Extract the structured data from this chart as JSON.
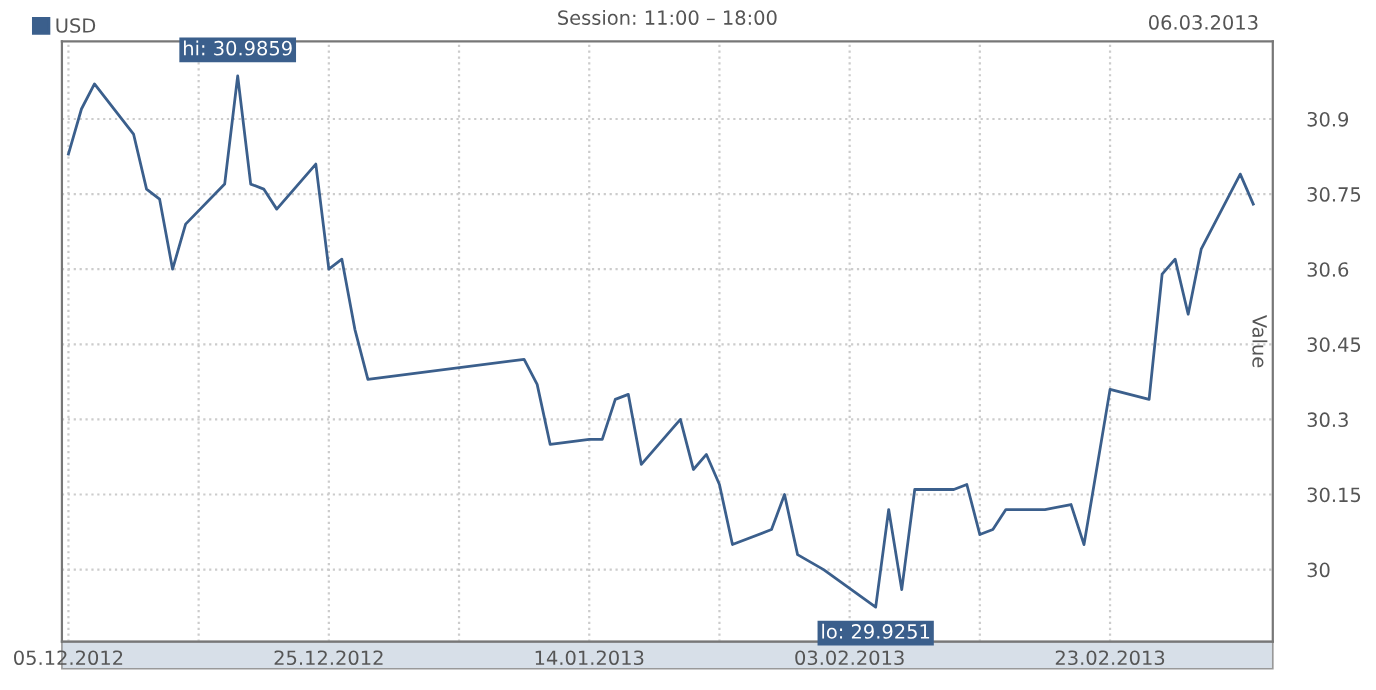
{
  "chart_data": {
    "type": "line",
    "title": "Session: 11:00 – 18:00",
    "annotations": [
      "06.03.2013",
      {
        "text": "hi: 30.9859",
        "x": "2012-12-18",
        "y": 30.9859
      },
      {
        "text": "lo: 29.9251",
        "x": "2013-02-05",
        "y": 29.9251
      }
    ],
    "ylabel": "Value",
    "series": [
      {
        "name": "USD",
        "color": "#3b5f8c",
        "x": [
          "2012-12-05",
          "2012-12-06",
          "2012-12-07",
          "2012-12-10",
          "2012-12-11",
          "2012-12-12",
          "2012-12-13",
          "2012-12-14",
          "2012-12-17",
          "2012-12-18",
          "2012-12-19",
          "2012-12-20",
          "2012-12-21",
          "2012-12-24",
          "2012-12-25",
          "2012-12-26",
          "2012-12-27",
          "2012-12-28",
          "2013-01-09",
          "2013-01-10",
          "2013-01-11",
          "2013-01-14",
          "2013-01-15",
          "2013-01-16",
          "2013-01-17",
          "2013-01-18",
          "2013-01-21",
          "2013-01-22",
          "2013-01-23",
          "2013-01-24",
          "2013-01-25",
          "2013-01-28",
          "2013-01-29",
          "2013-01-30",
          "2013-02-01",
          "2013-02-05",
          "2013-02-06",
          "2013-02-07",
          "2013-02-08",
          "2013-02-11",
          "2013-02-12",
          "2013-02-13",
          "2013-02-14",
          "2013-02-15",
          "2013-02-18",
          "2013-02-20",
          "2013-02-21",
          "2013-02-23",
          "2013-02-26",
          "2013-02-27",
          "2013-02-28",
          "2013-03-01",
          "2013-03-02",
          "2013-03-05",
          "2013-03-06"
        ],
        "values": [
          30.83,
          30.92,
          30.97,
          30.87,
          30.76,
          30.74,
          30.6,
          30.69,
          30.77,
          30.9859,
          30.77,
          30.76,
          30.72,
          30.81,
          30.6,
          30.62,
          30.48,
          30.38,
          30.42,
          30.37,
          30.25,
          30.26,
          30.26,
          30.34,
          30.35,
          30.21,
          30.3,
          30.2,
          30.23,
          30.17,
          30.05,
          30.08,
          30.15,
          30.03,
          30.0,
          29.9251,
          30.12,
          29.96,
          30.16,
          30.16,
          30.17,
          30.07,
          30.08,
          30.12,
          30.12,
          30.13,
          30.05,
          30.36,
          30.34,
          30.59,
          30.62,
          30.51,
          30.64,
          30.79,
          30.73
        ]
      }
    ],
    "xlim": [
      "2012-12-04T12:00",
      "2013-03-07T12:00"
    ],
    "xticks": [
      {
        "value": "2012-12-05",
        "label": "05.12.2012"
      },
      {
        "value": "2012-12-15",
        "label": null
      },
      {
        "value": "2012-12-25",
        "label": "25.12.2012"
      },
      {
        "value": "2013-01-04",
        "label": null
      },
      {
        "value": "2013-01-14",
        "label": "14.01.2013"
      },
      {
        "value": "2013-01-24",
        "label": null
      },
      {
        "value": "2013-02-03",
        "label": "03.02.2013"
      },
      {
        "value": "2013-02-13",
        "label": null
      },
      {
        "value": "2013-02-23",
        "label": "23.02.2013"
      }
    ],
    "ylim": [
      29.856,
      31.055
    ],
    "yticks": [
      30,
      30.15,
      30.3,
      30.45,
      30.6,
      30.75,
      30.9
    ],
    "grid": true,
    "legend": "top left",
    "marker": "none",
    "line_style": "solid"
  }
}
